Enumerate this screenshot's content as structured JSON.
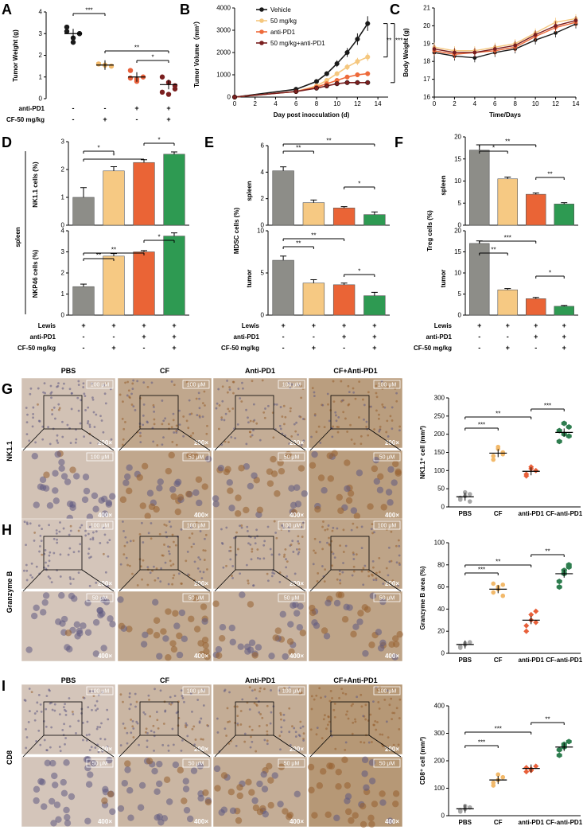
{
  "panel_letters": [
    "A",
    "B",
    "C",
    "D",
    "E",
    "F",
    "G",
    "H",
    "I"
  ],
  "colors": {
    "vehicle": "#1a1a1a",
    "cf": "#f5c77e",
    "anti": "#ee6a3a",
    "combo": "#7a1f1f",
    "pbs_dot": "#a8a8a8",
    "cf_dot": "#f2b96a",
    "anti_dot": "#e8603a",
    "combo_dot": "#2e7d4f",
    "bar_grey": "#8d8d88",
    "bar_cf": "#f6c983",
    "bar_anti": "#ea6436",
    "bar_combo": "#2e9a52"
  },
  "condition_table": {
    "anti_pd1_label": "anti-PD1",
    "cf_label": "CF-50 mg/kg",
    "lewis_label": "Lewis",
    "A": {
      "anti_pd1": [
        "-",
        "-",
        "+",
        "+"
      ],
      "cf": [
        "-",
        "+",
        "-",
        "+"
      ]
    },
    "DEF": {
      "lewis": [
        "+",
        "+",
        "+",
        "+"
      ],
      "anti_pd1": [
        "-",
        "-",
        "+",
        "+"
      ],
      "cf": [
        "-",
        "+",
        "-",
        "+"
      ]
    }
  },
  "chart_data": [
    {
      "panel": "A",
      "type": "scatter",
      "ylabel": "Tumor Weight (g)",
      "ylim": [
        0,
        4
      ],
      "yticks": [
        "0",
        "1",
        "2",
        "3",
        "4"
      ],
      "groups": [
        {
          "points": [
            3.3,
            2.8,
            3.0,
            3.1,
            2.6,
            3.0
          ],
          "mean": 3.0
        },
        {
          "points": [
            1.6,
            1.55,
            1.5,
            1.6,
            1.55
          ],
          "mean": 1.55
        },
        {
          "points": [
            1.3,
            0.9,
            1.0,
            0.95,
            0.8
          ],
          "mean": 1.0
        },
        {
          "points": [
            1.0,
            0.75,
            0.6,
            0.3,
            0.2,
            0.45
          ],
          "mean": 0.65
        }
      ],
      "sig": [
        {
          "from": 0,
          "to": 1,
          "label": "***"
        },
        {
          "from": 1,
          "to": 3,
          "label": "**"
        },
        {
          "from": 2,
          "to": 3,
          "label": "*"
        }
      ]
    },
    {
      "panel": "B",
      "type": "line",
      "xlabel": "Day post inocculation (d)",
      "ylabel": "Tumor Volume（mm³）",
      "ylim": [
        0,
        4000
      ],
      "xlim": [
        0,
        15
      ],
      "xticks": [
        "0",
        "2",
        "4",
        "6",
        "8",
        "10",
        "12",
        "14"
      ],
      "yticks": [
        "0",
        "1000",
        "2000",
        "3000",
        "4000"
      ],
      "x": [
        0,
        6,
        8,
        9,
        10,
        11,
        12,
        13
      ],
      "series": [
        {
          "name": "Vehicle",
          "values": [
            0,
            350,
            700,
            1050,
            1500,
            2000,
            2600,
            3300
          ]
        },
        {
          "name": "50 mg/kg",
          "values": [
            0,
            250,
            500,
            750,
            1050,
            1350,
            1600,
            1800
          ]
        },
        {
          "name": "anti-PD1",
          "values": [
            0,
            250,
            450,
            600,
            750,
            900,
            1000,
            1050
          ]
        },
        {
          "name": "50 mg/kg+anti-PD1",
          "values": [
            0,
            250,
            400,
            500,
            600,
            650,
            650,
            650
          ]
        }
      ],
      "sig": [
        "**",
        "***"
      ]
    },
    {
      "panel": "C",
      "type": "line",
      "xlabel": "Time/Days",
      "ylabel": "Body Weight (g)",
      "ylim": [
        16,
        21
      ],
      "xlim": [
        0,
        14
      ],
      "xticks": [
        "0",
        "2",
        "4",
        "6",
        "8",
        "10",
        "12",
        "14"
      ],
      "yticks": [
        "16",
        "17",
        "18",
        "19",
        "20",
        "21"
      ],
      "x": [
        0,
        2,
        4,
        6,
        8,
        10,
        12,
        14
      ],
      "series": [
        {
          "values": [
            18.5,
            18.3,
            18.2,
            18.5,
            18.7,
            19.2,
            19.6,
            20.1
          ]
        },
        {
          "values": [
            18.8,
            18.6,
            18.6,
            18.8,
            19.0,
            19.6,
            20.2,
            20.4
          ]
        },
        {
          "values": [
            18.6,
            18.4,
            18.5,
            18.6,
            18.8,
            19.4,
            19.9,
            20.2
          ]
        },
        {
          "values": [
            18.7,
            18.5,
            18.5,
            18.7,
            18.9,
            19.5,
            20.0,
            20.3
          ]
        }
      ]
    },
    {
      "panel": "D",
      "type": "bar",
      "section_label": "spleen",
      "subplots": [
        {
          "ylabel": "NK1.1 cells (%)",
          "ylim": [
            0,
            3
          ],
          "yticks": [
            "0",
            "1",
            "2",
            "3"
          ],
          "values": [
            1.0,
            1.95,
            2.25,
            2.55
          ],
          "errors": [
            0.35,
            0.15,
            0.1,
            0.08
          ],
          "sig": [
            {
              "from": 0,
              "to": 1,
              "label": "*"
            },
            {
              "from": 0,
              "to": 2,
              "label": "*"
            },
            {
              "from": 2,
              "to": 3,
              "label": "*"
            }
          ]
        },
        {
          "ylabel": "NKP46 cells (%)",
          "ylim": [
            0,
            4
          ],
          "yticks": [
            "0",
            "1",
            "2",
            "3",
            "4"
          ],
          "values": [
            1.35,
            2.8,
            3.0,
            3.75
          ],
          "errors": [
            0.12,
            0.12,
            0.06,
            0.15
          ],
          "sig": [
            {
              "from": 0,
              "to": 1,
              "label": "**"
            },
            {
              "from": 0,
              "to": 2,
              "label": "**"
            },
            {
              "from": 2,
              "to": 3,
              "label": "*"
            }
          ]
        }
      ]
    },
    {
      "panel": "E",
      "type": "bar",
      "ylabel": "MDSC cells (%)",
      "subplots": [
        {
          "section_label": "spleen",
          "ylim": [
            0,
            6
          ],
          "yticks": [
            "0",
            "2",
            "4",
            "6"
          ],
          "values": [
            4.1,
            1.7,
            1.3,
            0.8
          ],
          "errors": [
            0.3,
            0.2,
            0.1,
            0.2
          ],
          "sig": [
            {
              "from": 0,
              "to": 1,
              "label": "**"
            },
            {
              "from": 0,
              "to": 3,
              "label": "**"
            },
            {
              "from": 2,
              "to": 3,
              "label": "*"
            }
          ]
        },
        {
          "section_label": "tumor",
          "ylim": [
            0,
            10
          ],
          "yticks": [
            "0",
            "5",
            "10"
          ],
          "values": [
            6.5,
            3.8,
            3.6,
            2.3
          ],
          "errors": [
            0.5,
            0.4,
            0.2,
            0.4
          ],
          "sig": [
            {
              "from": 0,
              "to": 1,
              "label": "**"
            },
            {
              "from": 0,
              "to": 2,
              "label": "**"
            },
            {
              "from": 2,
              "to": 3,
              "label": "*"
            }
          ]
        }
      ]
    },
    {
      "panel": "F",
      "type": "bar",
      "ylabel": "Treg cells (%)",
      "subplots": [
        {
          "section_label": "spleen",
          "ylim": [
            0,
            20
          ],
          "yticks": [
            "0",
            "5",
            "10",
            "15",
            "20"
          ],
          "values": [
            17,
            10.5,
            7,
            4.8
          ],
          "errors": [
            1.2,
            0.4,
            0.3,
            0.3
          ],
          "sig": [
            {
              "from": 0,
              "to": 1,
              "label": "*"
            },
            {
              "from": 0,
              "to": 2,
              "label": "**"
            },
            {
              "from": 2,
              "to": 3,
              "label": "**"
            }
          ]
        },
        {
          "section_label": "tumor",
          "ylim": [
            0,
            20
          ],
          "yticks": [
            "0",
            "5",
            "10",
            "15",
            "20"
          ],
          "values": [
            17,
            6,
            3.9,
            2.1
          ],
          "errors": [
            0.6,
            0.3,
            0.3,
            0.2
          ],
          "sig": [
            {
              "from": 0,
              "to": 1,
              "label": "**"
            },
            {
              "from": 0,
              "to": 2,
              "label": "***"
            },
            {
              "from": 2,
              "to": 3,
              "label": "*"
            }
          ]
        }
      ]
    },
    {
      "panel": "G",
      "type": "scatter",
      "ylabel": "NK1.1⁺ cell (mm²)",
      "ylim": [
        0,
        300
      ],
      "yticks": [
        "0",
        "50",
        "100",
        "150",
        "200",
        "250",
        "300"
      ],
      "categories": [
        "PBS",
        "CF",
        "anti-PD1",
        "CF-anti-PD1"
      ],
      "groups": [
        {
          "points": [
            20,
            30,
            35,
            25,
            40,
            15
          ],
          "mean": 28
        },
        {
          "points": [
            130,
            165,
            150,
            140,
            160,
            145
          ],
          "mean": 148
        },
        {
          "points": [
            90,
            110,
            100,
            85,
            105
          ],
          "mean": 98
        },
        {
          "points": [
            180,
            200,
            220,
            210,
            230,
            195
          ],
          "mean": 205
        }
      ],
      "sig": [
        {
          "from": 0,
          "to": 1,
          "label": "***"
        },
        {
          "from": 0,
          "to": 2,
          "label": "**"
        },
        {
          "from": 2,
          "to": 3,
          "label": "***"
        }
      ]
    },
    {
      "panel": "H",
      "type": "scatter",
      "ylabel": "Granzyme B area (%)",
      "ylim": [
        0,
        100
      ],
      "yticks": [
        "0",
        "20",
        "40",
        "60",
        "80",
        "100"
      ],
      "categories": [
        "PBS",
        "CF",
        "anti-PD1",
        "CF-anti-PD1"
      ],
      "groups": [
        {
          "points": [
            5,
            8,
            10,
            6,
            9
          ],
          "mean": 8
        },
        {
          "points": [
            55,
            60,
            52,
            63,
            58,
            62
          ],
          "mean": 58
        },
        {
          "points": [
            20,
            30,
            38,
            25,
            35,
            28
          ],
          "mean": 30
        },
        {
          "points": [
            60,
            75,
            80,
            65,
            72,
            78
          ],
          "mean": 72
        }
      ],
      "sig": [
        {
          "from": 0,
          "to": 1,
          "label": "***"
        },
        {
          "from": 0,
          "to": 2,
          "label": "**"
        },
        {
          "from": 2,
          "to": 3,
          "label": "**"
        }
      ]
    },
    {
      "panel": "I",
      "type": "scatter",
      "ylabel": "CD8⁺ cell (mm²)",
      "ylim": [
        0,
        400
      ],
      "yticks": [
        "0",
        "100",
        "200",
        "300",
        "400"
      ],
      "categories": [
        "PBS",
        "CF",
        "anti-PD1",
        "CF-anti-PD1"
      ],
      "groups": [
        {
          "points": [
            15,
            25,
            30,
            20,
            35
          ],
          "mean": 25
        },
        {
          "points": [
            110,
            130,
            140,
            120,
            150
          ],
          "mean": 130
        },
        {
          "points": [
            160,
            170,
            180,
            175,
            165
          ],
          "mean": 172
        },
        {
          "points": [
            220,
            250,
            270,
            240,
            260
          ],
          "mean": 250
        }
      ],
      "sig": [
        {
          "from": 0,
          "to": 1,
          "label": "***"
        },
        {
          "from": 0,
          "to": 2,
          "label": "***"
        },
        {
          "from": 2,
          "to": 3,
          "label": "**"
        }
      ]
    }
  ],
  "micro_rows": [
    {
      "panel": "G",
      "stain": "NK1.1",
      "headers": [
        "PBS",
        "CF",
        "Anti-PD1",
        "CF+Anti-PD1"
      ],
      "scale_top": [
        "100 μM",
        "100 μM",
        "100 μM",
        "100 μM"
      ],
      "scale_bot": [
        "100 μM",
        "50 μM",
        "50 μM",
        "50 μM"
      ],
      "mag_top": "200×",
      "mag_bot": "400×",
      "tones": [
        0.1,
        0.55,
        0.45,
        0.7
      ]
    },
    {
      "panel": "H",
      "stain": "Granzyme B",
      "headers": [
        "PBS",
        "CF",
        "Anti-PD1",
        "CF+Anti-PD1"
      ],
      "scale_top": [
        "100 μM",
        "100 μM",
        "100 μM",
        "100 μM"
      ],
      "scale_bot": [
        "50 μM",
        "50 μM",
        "50 μM",
        "50 μM"
      ],
      "mag_top": "200×",
      "mag_bot": "400×",
      "tones": [
        0.05,
        0.5,
        0.35,
        0.6
      ]
    },
    {
      "panel": "I",
      "stain": "CD8",
      "headers": [
        "PBS",
        "CF",
        "Anti-PD1",
        "CF+Anti-PD1"
      ],
      "scale_top": [
        "100 μM",
        "100 μM",
        "100 μM",
        "100 μM"
      ],
      "scale_bot": [
        "50 μM",
        "50 μM",
        "50 μM",
        "50 μM"
      ],
      "mag_top": "200×",
      "mag_bot": "400×",
      "tones": [
        0.05,
        0.3,
        0.45,
        0.8
      ]
    }
  ]
}
